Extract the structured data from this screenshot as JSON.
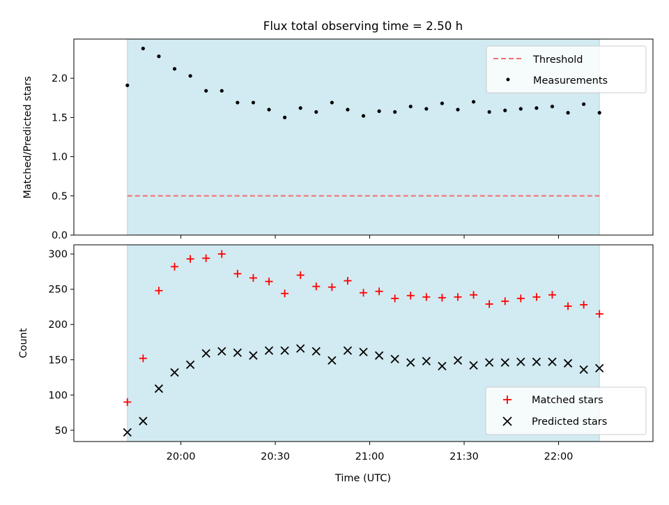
{
  "colors": {
    "span": "#add8e6",
    "threshold": "#f07070",
    "measurement": "#000000",
    "matched": "#ff0000",
    "predicted": "#000000"
  },
  "chart_data": [
    {
      "type": "scatter",
      "title": "Flux total observing time = 2.50 h",
      "xlabel": "",
      "ylabel": "Matched/Predicted stars",
      "ylim": [
        0,
        2.5
      ],
      "yticks": [
        "0.0",
        "0.5",
        "1.0",
        "1.5",
        "2.0"
      ],
      "grid": false,
      "legend_position": "upper-right",
      "observing_span": [
        "19:43",
        "22:13"
      ],
      "x": [
        "19:43",
        "19:48",
        "19:53",
        "19:58",
        "20:03",
        "20:08",
        "20:13",
        "20:18",
        "20:23",
        "20:28",
        "20:33",
        "20:38",
        "20:43",
        "20:48",
        "20:53",
        "20:58",
        "21:03",
        "21:08",
        "21:13",
        "21:18",
        "21:23",
        "21:28",
        "21:33",
        "21:38",
        "21:43",
        "21:48",
        "21:53",
        "21:58",
        "22:03",
        "22:08",
        "22:13"
      ],
      "series": [
        {
          "name": "Measurements",
          "values": [
            1.91,
            2.38,
            2.28,
            2.12,
            2.03,
            1.84,
            1.84,
            1.69,
            1.69,
            1.6,
            1.5,
            1.62,
            1.57,
            1.69,
            1.6,
            1.52,
            1.58,
            1.57,
            1.64,
            1.61,
            1.68,
            1.6,
            1.7,
            1.57,
            1.59,
            1.61,
            1.62,
            1.64,
            1.56,
            1.67,
            1.56
          ]
        },
        {
          "name": "Threshold",
          "values": [
            0.5
          ]
        }
      ]
    },
    {
      "type": "scatter",
      "title": "",
      "xlabel": "Time (UTC)",
      "ylabel": "Count",
      "ylim": [
        34,
        313
      ],
      "yticks": [
        "50",
        "100",
        "150",
        "200",
        "250",
        "300"
      ],
      "xticks": [
        "20:00",
        "20:30",
        "21:00",
        "21:30",
        "22:00"
      ],
      "grid": false,
      "legend_position": "lower-right",
      "observing_span": [
        "19:43",
        "22:13"
      ],
      "x": [
        "19:43",
        "19:48",
        "19:53",
        "19:58",
        "20:03",
        "20:08",
        "20:13",
        "20:18",
        "20:23",
        "20:28",
        "20:33",
        "20:38",
        "20:43",
        "20:48",
        "20:53",
        "20:58",
        "21:03",
        "21:08",
        "21:13",
        "21:18",
        "21:23",
        "21:28",
        "21:33",
        "21:38",
        "21:43",
        "21:48",
        "21:53",
        "21:58",
        "22:03",
        "22:08",
        "22:13"
      ],
      "series": [
        {
          "name": "Matched stars",
          "values": [
            90,
            152,
            248,
            282,
            293,
            294,
            300,
            272,
            266,
            261,
            244,
            270,
            254,
            253,
            262,
            245,
            247,
            237,
            241,
            239,
            238,
            239,
            242,
            229,
            233,
            237,
            239,
            242,
            226,
            228,
            215
          ]
        },
        {
          "name": "Predicted stars",
          "values": [
            47,
            63,
            109,
            132,
            143,
            159,
            162,
            160,
            156,
            163,
            163,
            166,
            162,
            149,
            163,
            161,
            156,
            151,
            146,
            148,
            141,
            149,
            142,
            146,
            146,
            147,
            147,
            147,
            145,
            136,
            138
          ]
        }
      ]
    }
  ]
}
